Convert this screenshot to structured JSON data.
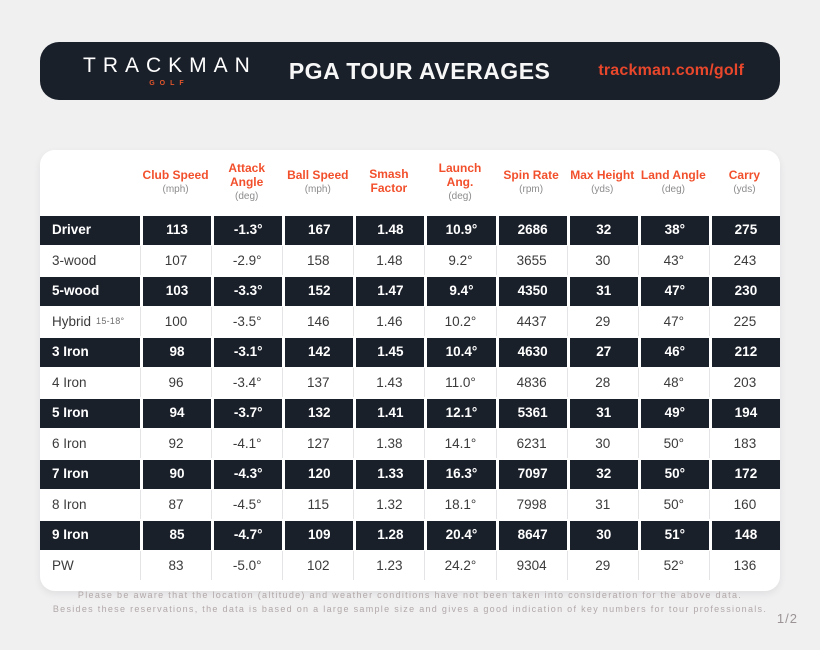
{
  "page": {
    "page_number": "1/2"
  },
  "header": {
    "brand": "TRACKMAN",
    "brand_sub": "GOLF",
    "title": "PGA TOUR AVERAGES",
    "link": "trackman.com/golf"
  },
  "colors": {
    "accent_orange": "#E8472B",
    "header_label_orange": "#F2502C",
    "dark_bg": "#1A202A",
    "page_bg": "#F0F0F1",
    "light_row_text": "#3B3B3B",
    "unit_text": "#8C8C8C",
    "footer_text": "#B2A8A8"
  },
  "chart_data": {
    "type": "table",
    "title": "PGA TOUR AVERAGES",
    "columns": [
      {
        "label": "Club Speed",
        "unit": "(mph)"
      },
      {
        "label": "Attack Angle",
        "unit": "(deg)"
      },
      {
        "label": "Ball Speed",
        "unit": "(mph)"
      },
      {
        "label": "Smash Factor",
        "unit": ""
      },
      {
        "label": "Launch Ang.",
        "unit": "(deg)"
      },
      {
        "label": "Spin Rate",
        "unit": "(rpm)"
      },
      {
        "label": "Max Height",
        "unit": "(yds)"
      },
      {
        "label": "Land Angle",
        "unit": "(deg)"
      },
      {
        "label": "Carry",
        "unit": "(yds)"
      }
    ],
    "rows": [
      {
        "club": "Driver",
        "club_note": "",
        "dark": true,
        "values": [
          "113",
          "-1.3°",
          "167",
          "1.48",
          "10.9°",
          "2686",
          "32",
          "38°",
          "275"
        ]
      },
      {
        "club": "3-wood",
        "club_note": "",
        "dark": false,
        "values": [
          "107",
          "-2.9°",
          "158",
          "1.48",
          "9.2°",
          "3655",
          "30",
          "43°",
          "243"
        ]
      },
      {
        "club": "5-wood",
        "club_note": "",
        "dark": true,
        "values": [
          "103",
          "-3.3°",
          "152",
          "1.47",
          "9.4°",
          "4350",
          "31",
          "47°",
          "230"
        ]
      },
      {
        "club": "Hybrid",
        "club_note": "15-18°",
        "dark": false,
        "values": [
          "100",
          "-3.5°",
          "146",
          "1.46",
          "10.2°",
          "4437",
          "29",
          "47°",
          "225"
        ]
      },
      {
        "club": "3 Iron",
        "club_note": "",
        "dark": true,
        "values": [
          "98",
          "-3.1°",
          "142",
          "1.45",
          "10.4°",
          "4630",
          "27",
          "46°",
          "212"
        ]
      },
      {
        "club": "4 Iron",
        "club_note": "",
        "dark": false,
        "values": [
          "96",
          "-3.4°",
          "137",
          "1.43",
          "11.0°",
          "4836",
          "28",
          "48°",
          "203"
        ]
      },
      {
        "club": "5 Iron",
        "club_note": "",
        "dark": true,
        "values": [
          "94",
          "-3.7°",
          "132",
          "1.41",
          "12.1°",
          "5361",
          "31",
          "49°",
          "194"
        ]
      },
      {
        "club": "6 Iron",
        "club_note": "",
        "dark": false,
        "values": [
          "92",
          "-4.1°",
          "127",
          "1.38",
          "14.1°",
          "6231",
          "30",
          "50°",
          "183"
        ]
      },
      {
        "club": "7 Iron",
        "club_note": "",
        "dark": true,
        "values": [
          "90",
          "-4.3°",
          "120",
          "1.33",
          "16.3°",
          "7097",
          "32",
          "50°",
          "172"
        ]
      },
      {
        "club": "8 Iron",
        "club_note": "",
        "dark": false,
        "values": [
          "87",
          "-4.5°",
          "115",
          "1.32",
          "18.1°",
          "7998",
          "31",
          "50°",
          "160"
        ]
      },
      {
        "club": "9 Iron",
        "club_note": "",
        "dark": true,
        "values": [
          "85",
          "-4.7°",
          "109",
          "1.28",
          "20.4°",
          "8647",
          "30",
          "51°",
          "148"
        ]
      },
      {
        "club": "PW",
        "club_note": "",
        "dark": false,
        "values": [
          "83",
          "-5.0°",
          "102",
          "1.23",
          "24.2°",
          "9304",
          "29",
          "52°",
          "136"
        ]
      }
    ]
  },
  "footer": {
    "line1": "Please be aware that the location (altitude) and weather conditions have not been taken into consideration for the above data.",
    "line2": "Besides these reservations, the data is based on a large sample size and gives a good indication of key numbers for tour professionals."
  }
}
